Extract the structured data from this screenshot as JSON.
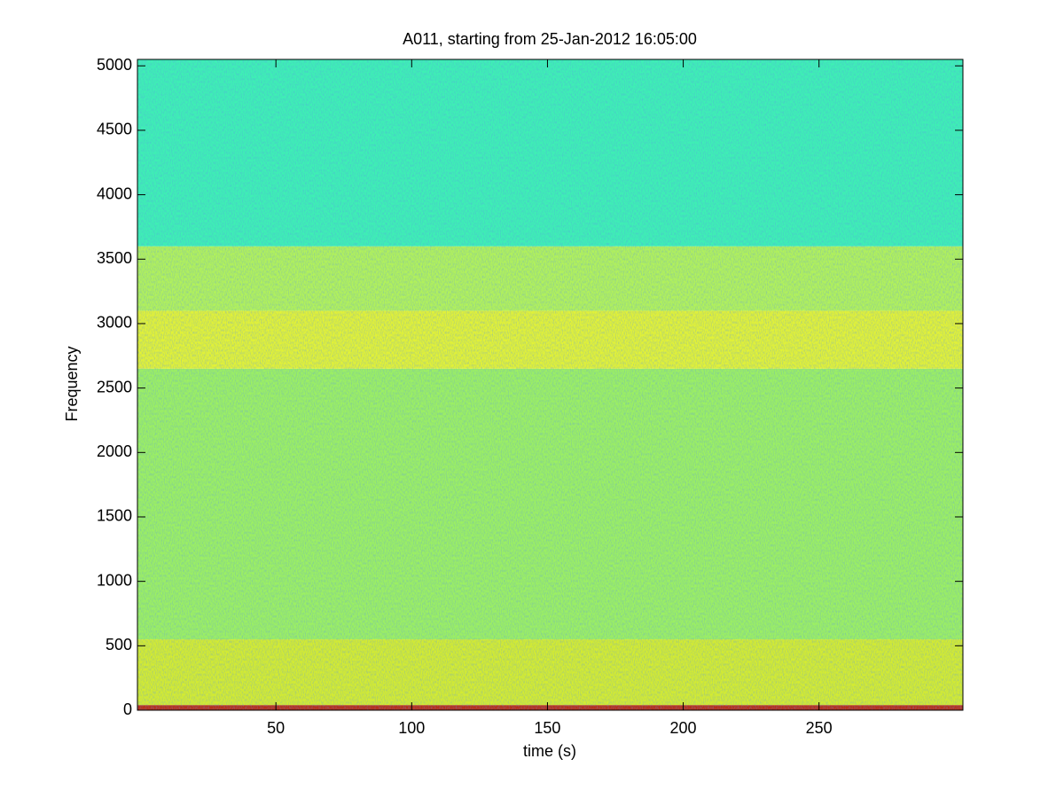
{
  "chart_data": {
    "type": "spectrogram",
    "title": "A011, starting from 25-Jan-2012 16:05:00",
    "x_label": "time (s)",
    "y_label": "Frequency",
    "xlim": [
      -1,
      303
    ],
    "ylim": [
      0,
      5050
    ],
    "xticks": [
      50,
      100,
      150,
      200,
      250
    ],
    "yticks": [
      0,
      500,
      1000,
      1500,
      2000,
      2500,
      3000,
      3500,
      4000,
      4500,
      5000
    ],
    "bands": [
      {
        "from": 0,
        "to": 40,
        "color": "#b8301a"
      },
      {
        "from": 40,
        "to": 550,
        "color": "#d4ec30"
      },
      {
        "from": 550,
        "to": 2650,
        "color": "#9cf062"
      },
      {
        "from": 2650,
        "to": 3100,
        "color": "#e2f236"
      },
      {
        "from": 3100,
        "to": 3600,
        "color": "#b2f25a"
      },
      {
        "from": 3600,
        "to": 5050,
        "color": "#3ef0b4"
      }
    ]
  }
}
